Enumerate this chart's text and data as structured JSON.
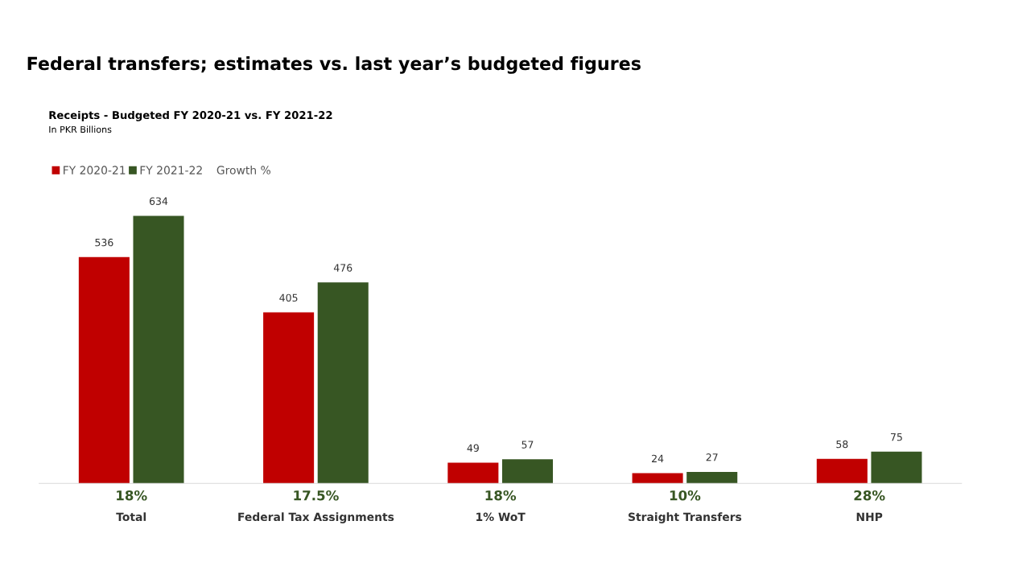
{
  "chart_data": {
    "type": "bar",
    "title": "Federal transfers; estimates vs. last year’s budgeted figures",
    "subtitle": "Receipts - Budgeted FY 2020-21 vs. FY 2021-22\nIn PKR Billions",
    "categories": [
      "Total",
      "Federal Tax Assignments",
      "1% WoT",
      "Straight Transfers",
      "NHP"
    ],
    "series": [
      {
        "name": "FY 2020-21",
        "color": "#c00000",
        "values": [
          536,
          405,
          49,
          24,
          58
        ]
      },
      {
        "name": "FY 2021-22",
        "color": "#375623",
        "values": [
          634,
          476,
          57,
          27,
          75
        ]
      }
    ],
    "relative": false,
    "data_labels": true,
    "legend": "top left",
    "legend_title": "Growth %",
    "annotations": [
      "18%",
      "17.5%",
      "18%",
      "10%",
      "28%"
    ],
    "grid": false
  }
}
